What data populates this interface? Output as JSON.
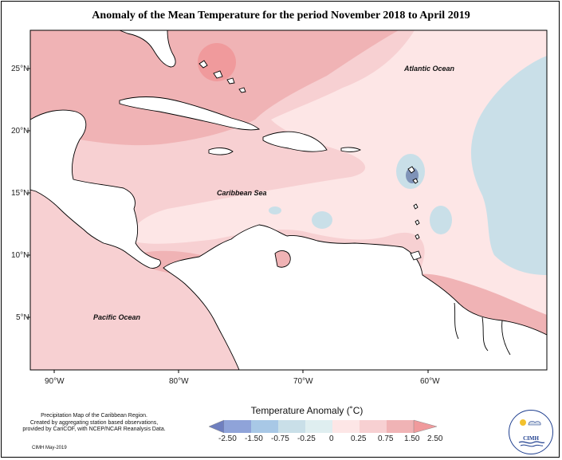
{
  "title": "Anomaly of the Mean Temperature for the period November 2018 to April 2019",
  "axes": {
    "lat_ticks": [
      "25°N",
      "20°N",
      "15°N",
      "10°N",
      "5°N"
    ],
    "lon_ticks": [
      "90°W",
      "80°W",
      "70°W",
      "60°W"
    ]
  },
  "labels": {
    "atlantic": "Atlantic Ocean",
    "caribbean": "Caribbean Sea",
    "pacific": "Pacific Ocean"
  },
  "legend": {
    "title": "Temperature Anomaly (˚C)",
    "ticks": [
      "-2.50",
      "-1.50",
      "-0.75",
      "-0.25",
      "0",
      "0.25",
      "0.75",
      "1.50",
      "2.50"
    ],
    "colors": [
      "#6f7fbf",
      "#8fa3d9",
      "#a8c8e6",
      "#c9dfe8",
      "#fde6e6",
      "#f7d0d2",
      "#f0b3b5",
      "#f09a9c"
    ]
  },
  "credit": {
    "line1": "Precipitation Map of the Caribbean Region.",
    "line2": "Created by aggregating station based observations,",
    "line3": "provided by CariCOF, with NCEP/NCAR Reanalysis Data.",
    "date": "CIMH May-2019"
  },
  "logo": {
    "text": "CIMH"
  },
  "colors": {
    "warm_strong": "#f09a9c",
    "warm": "#f0b3b5",
    "warm_light": "#f7d0d2",
    "neutral": "#fde6e6",
    "cool_light": "#c9dfe8",
    "cool": "#7f93b8",
    "land": "#ffffff"
  }
}
